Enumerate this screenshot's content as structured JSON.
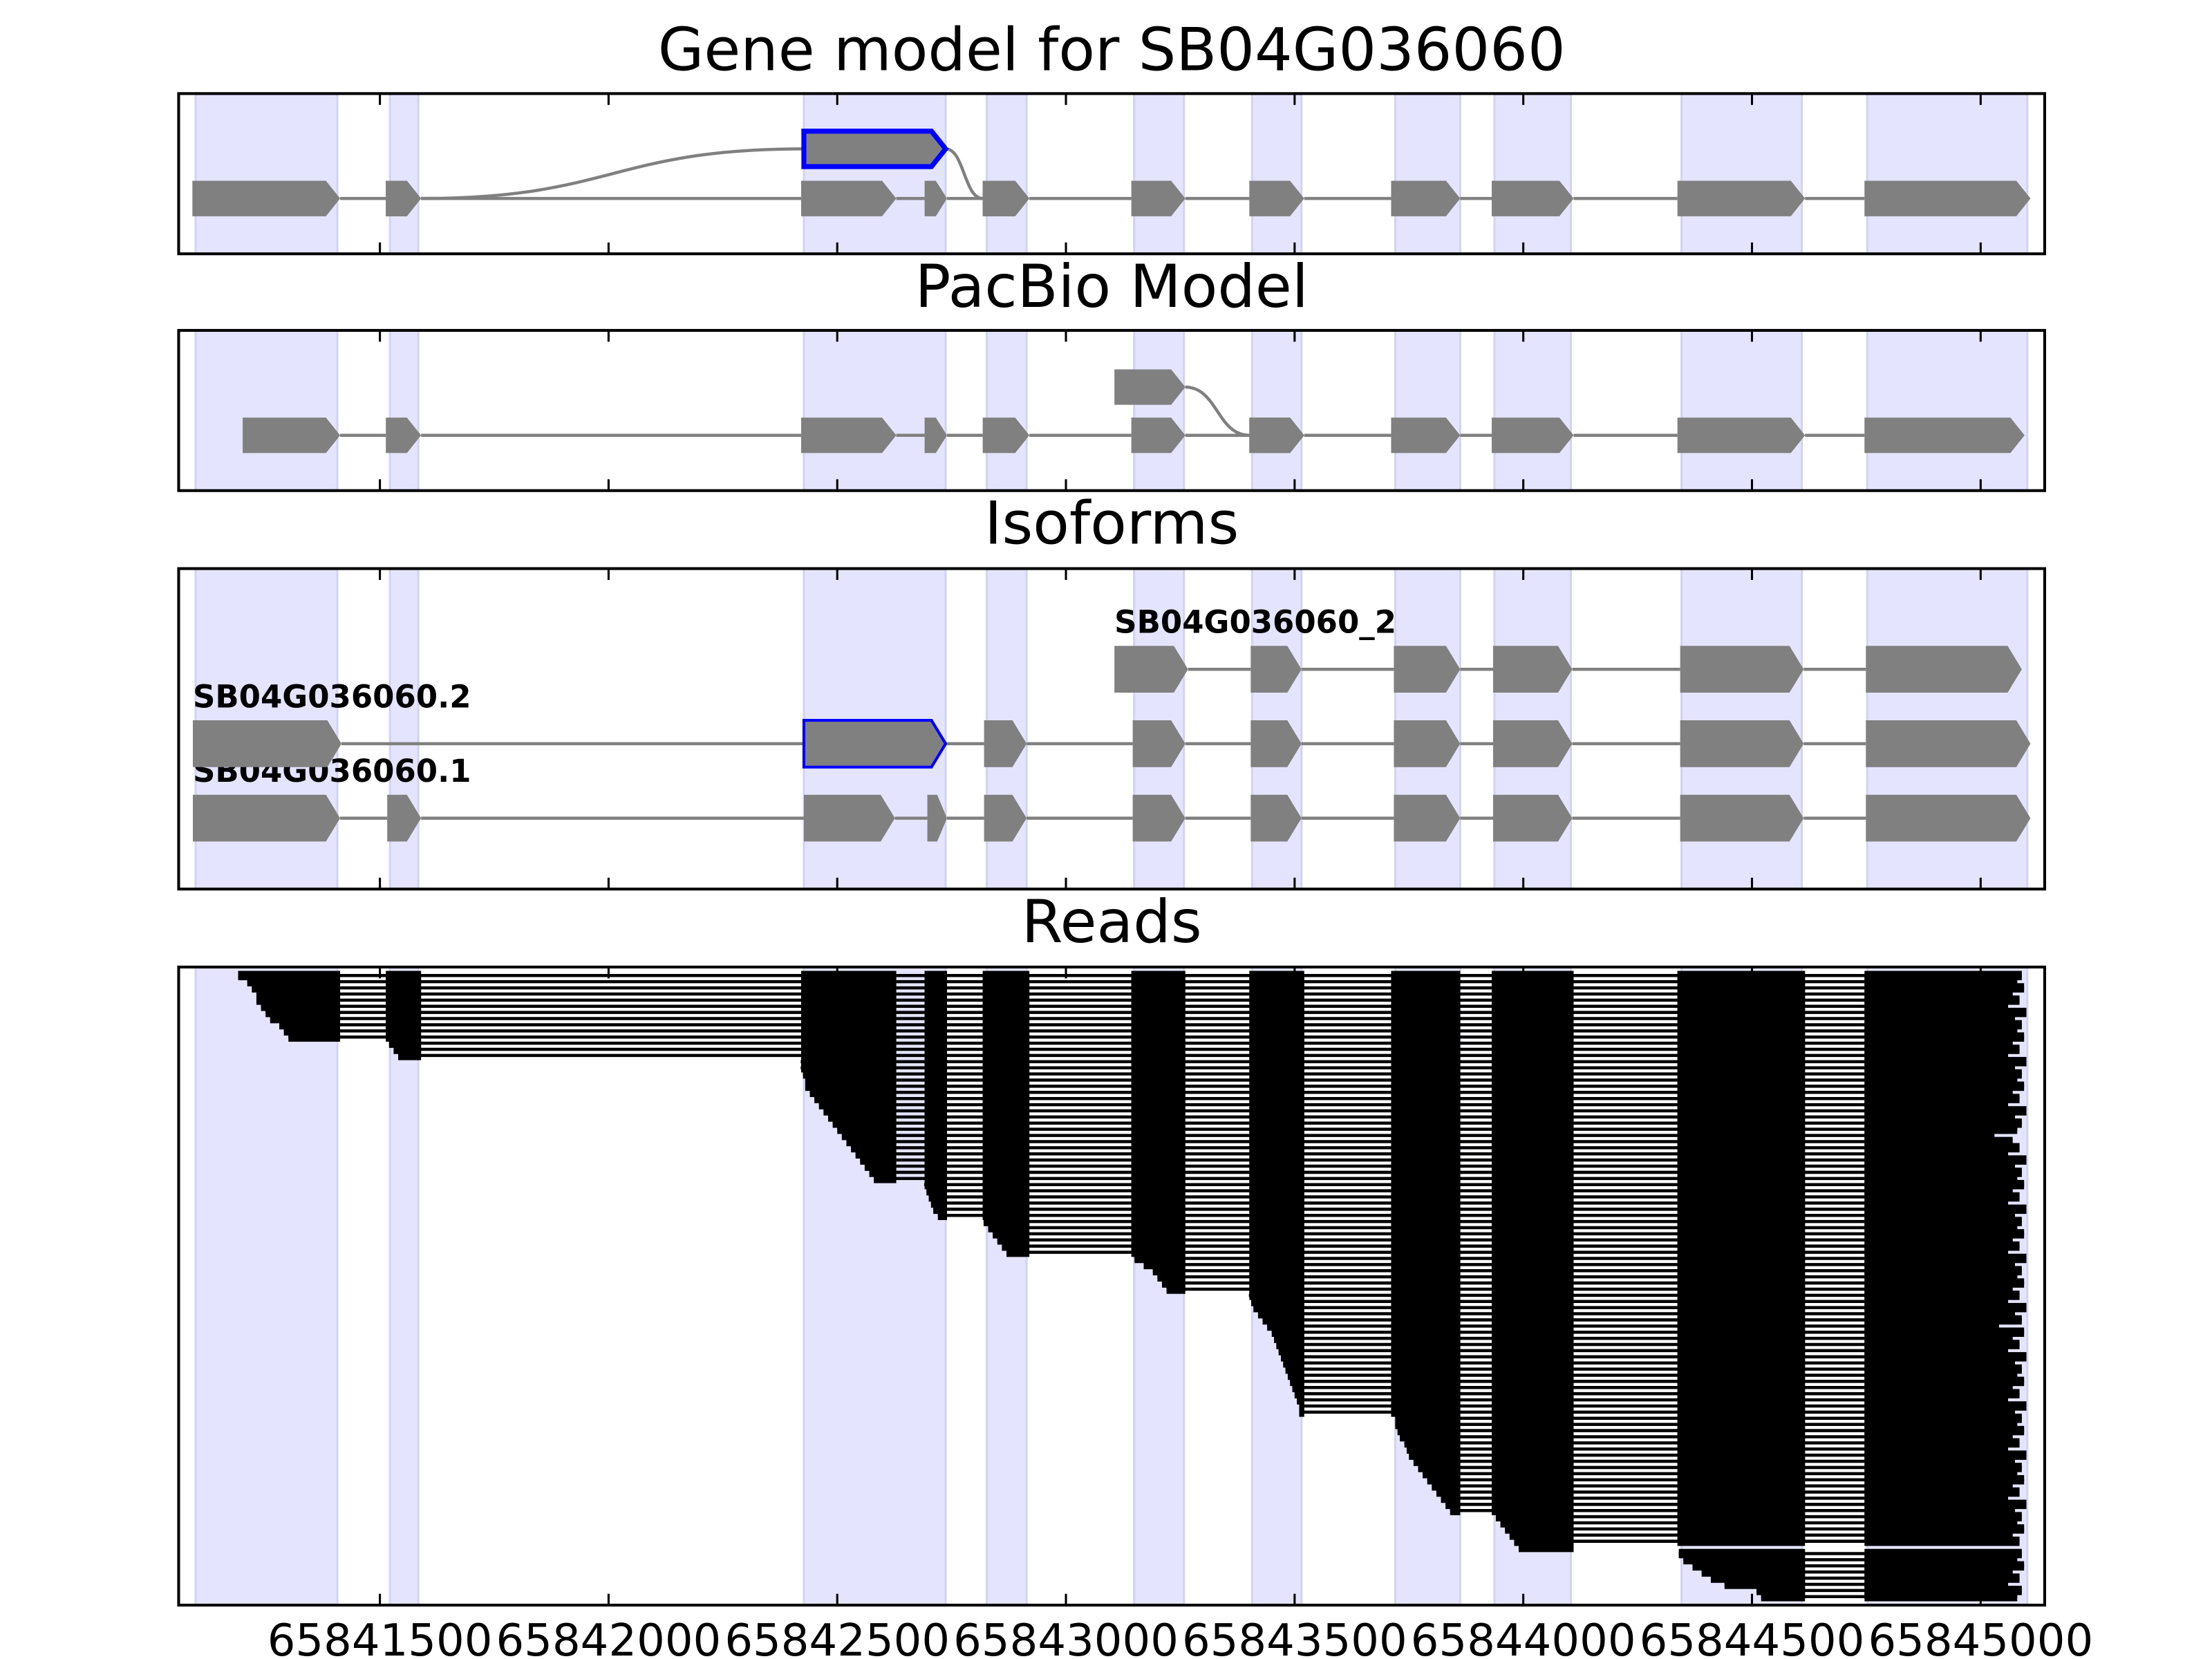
{
  "chart_data": {
    "type": "gene_tracks",
    "xlim": [
      65841060,
      65845140
    ],
    "xticks": [
      65841500,
      65842000,
      65842500,
      65843000,
      65843500,
      65844000,
      65844500,
      65845000
    ],
    "region_color": "#e4e4ff",
    "exon_color": "#808080",
    "intron_color": "#808080",
    "highlight_color": "#0000ff",
    "regions": [
      [
        65841097,
        65841407
      ],
      [
        65841522,
        65841584
      ],
      [
        65842427,
        65842737
      ],
      [
        65842827,
        65842914
      ],
      [
        65843149,
        65843258
      ],
      [
        65843407,
        65843515
      ],
      [
        65843720,
        65843862
      ],
      [
        65843937,
        65844104
      ],
      [
        65844346,
        65844609
      ],
      [
        65844752,
        65845102
      ]
    ],
    "panels": [
      {
        "title": "Gene model for SB04G036060",
        "transcripts": [
          {
            "exons": [
              [
                65841090,
                65841413
              ],
              [
                65841513,
                65841590
              ],
              [
                65842421,
                65842629
              ],
              [
                65842691,
                65842740
              ],
              [
                65842818,
                65842920
              ],
              [
                65843143,
                65843261
              ],
              [
                65843401,
                65843521
              ],
              [
                65843711,
                65843862
              ],
              [
                65843931,
                65844110
              ],
              [
                65844337,
                65844616
              ],
              [
                65844746,
                65845109
              ]
            ],
            "levels": [
              0,
              0,
              0,
              0,
              0,
              0,
              0,
              0,
              0,
              0,
              0
            ]
          },
          {
            "exons": [
              [
                65841513,
                65841590
              ],
              [
                65842427,
                65842737
              ],
              [
                65842818,
                65842920
              ]
            ],
            "levels": [
              0,
              1,
              0
            ],
            "highlight": 1
          }
        ]
      },
      {
        "title": "PacBio Model",
        "transcripts": [
          {
            "exons": [
              [
                65841200,
                65841413
              ],
              [
                65841513,
                65841590
              ],
              [
                65842421,
                65842629
              ],
              [
                65842691,
                65842740
              ],
              [
                65842818,
                65842920
              ],
              [
                65843143,
                65843261
              ],
              [
                65843401,
                65843521
              ],
              [
                65843711,
                65843862
              ],
              [
                65843931,
                65844110
              ],
              [
                65844337,
                65844616
              ],
              [
                65844746,
                65845096
              ]
            ],
            "levels": [
              0,
              0,
              0,
              0,
              0,
              0,
              0,
              0,
              0,
              0,
              0
            ]
          },
          {
            "exons": [
              [
                65843106,
                65843261
              ],
              [
                65843401,
                65843521
              ]
            ],
            "levels": [
              1,
              0
            ]
          }
        ]
      },
      {
        "title": "Isoforms",
        "transcripts": [
          {
            "name": "SB04G036060.1",
            "exons": [
              [
                65841091,
                65841413
              ],
              [
                65841516,
                65841590
              ],
              [
                65842427,
                65842626
              ],
              [
                65842697,
                65842740
              ],
              [
                65842821,
                65842914
              ],
              [
                65843146,
                65843261
              ],
              [
                65843404,
                65843515
              ],
              [
                65843717,
                65843862
              ],
              [
                65843934,
                65844107
              ],
              [
                65844343,
                65844613
              ],
              [
                65844749,
                65845109
              ]
            ],
            "levels": [
              0,
              0,
              0,
              0,
              0,
              0,
              0,
              0,
              0,
              0,
              0
            ]
          },
          {
            "name": "SB04G036060.2",
            "exons": [
              [
                65841091,
                65841416
              ],
              [
                65842427,
                65842737
              ],
              [
                65842821,
                65842914
              ],
              [
                65843146,
                65843261
              ],
              [
                65843404,
                65843515
              ],
              [
                65843717,
                65843862
              ],
              [
                65843934,
                65844107
              ],
              [
                65844343,
                65844613
              ],
              [
                65844749,
                65845109
              ]
            ],
            "levels": [
              1,
              1,
              1,
              1,
              1,
              1,
              1,
              1,
              1
            ],
            "highlight": 1
          },
          {
            "name": "SB04G036060_2",
            "exons": [
              [
                65843106,
                65843267
              ],
              [
                65843404,
                65843515
              ],
              [
                65843717,
                65843862
              ],
              [
                65843934,
                65844107
              ],
              [
                65844343,
                65844613
              ],
              [
                65844749,
                65845090
              ]
            ],
            "levels": [
              2,
              2,
              2,
              2,
              2,
              2
            ]
          }
        ]
      },
      {
        "title": "Reads",
        "color": "#000000",
        "reads": [
          [
            65841190,
            65845090
          ],
          [
            65841210,
            65845080
          ],
          [
            65841220,
            65845095
          ],
          [
            65841230,
            65845070
          ],
          [
            65841230,
            65845085
          ],
          [
            65841240,
            65845060
          ],
          [
            65841250,
            65845100
          ],
          [
            65841260,
            65845075
          ],
          [
            65841280,
            65845090
          ],
          [
            65841290,
            65845080
          ],
          [
            65841300,
            65845095
          ],
          [
            65841520,
            65845070
          ],
          [
            65841530,
            65845085
          ],
          [
            65841540,
            65845060
          ],
          [
            65842420,
            65845100
          ],
          [
            65842420,
            65845075
          ],
          [
            65842425,
            65845090
          ],
          [
            65842430,
            65845080
          ],
          [
            65842430,
            65845095
          ],
          [
            65842440,
            65845070
          ],
          [
            65842450,
            65845085
          ],
          [
            65842460,
            65845060
          ],
          [
            65842470,
            65845100
          ],
          [
            65842480,
            65845075
          ],
          [
            65842490,
            65845090
          ],
          [
            65842500,
            65845080
          ],
          [
            65842510,
            65845030
          ],
          [
            65842520,
            65845070
          ],
          [
            65842530,
            65845085
          ],
          [
            65842540,
            65845060
          ],
          [
            65842550,
            65845100
          ],
          [
            65842560,
            65845075
          ],
          [
            65842570,
            65845090
          ],
          [
            65842580,
            65845080
          ],
          [
            65842690,
            65845095
          ],
          [
            65842695,
            65845070
          ],
          [
            65842700,
            65845085
          ],
          [
            65842705,
            65845060
          ],
          [
            65842710,
            65845100
          ],
          [
            65842720,
            65845075
          ],
          [
            65842820,
            65845090
          ],
          [
            65842830,
            65845080
          ],
          [
            65842840,
            65845095
          ],
          [
            65842850,
            65845070
          ],
          [
            65842860,
            65845085
          ],
          [
            65842870,
            65845060
          ],
          [
            65843150,
            65845100
          ],
          [
            65843170,
            65845075
          ],
          [
            65843190,
            65845090
          ],
          [
            65843200,
            65845080
          ],
          [
            65843210,
            65845095
          ],
          [
            65843220,
            65845070
          ],
          [
            65843400,
            65845085
          ],
          [
            65843405,
            65845060
          ],
          [
            65843410,
            65845100
          ],
          [
            65843420,
            65845075
          ],
          [
            65843430,
            65845090
          ],
          [
            65843440,
            65845040
          ],
          [
            65843450,
            65845095
          ],
          [
            65843455,
            65845070
          ],
          [
            65843460,
            65845085
          ],
          [
            65843465,
            65845060
          ],
          [
            65843470,
            65845100
          ],
          [
            65843475,
            65845075
          ],
          [
            65843480,
            65845090
          ],
          [
            65843485,
            65845080
          ],
          [
            65843490,
            65845095
          ],
          [
            65843495,
            65845070
          ],
          [
            65843500,
            65845085
          ],
          [
            65843505,
            65845060
          ],
          [
            65843510,
            65845100
          ],
          [
            65843510,
            65845075
          ],
          [
            65843720,
            65845090
          ],
          [
            65843720,
            65845080
          ],
          [
            65843725,
            65845095
          ],
          [
            65843730,
            65845070
          ],
          [
            65843740,
            65845085
          ],
          [
            65843745,
            65845060
          ],
          [
            65843750,
            65845100
          ],
          [
            65843760,
            65845075
          ],
          [
            65843770,
            65845090
          ],
          [
            65843780,
            65845080
          ],
          [
            65843790,
            65845095
          ],
          [
            65843800,
            65845070
          ],
          [
            65843810,
            65845085
          ],
          [
            65843820,
            65845060
          ],
          [
            65843830,
            65845100
          ],
          [
            65843840,
            65845075
          ],
          [
            65843940,
            65845090
          ],
          [
            65843950,
            65845080
          ],
          [
            65843960,
            65845095
          ],
          [
            65843970,
            65845070
          ],
          [
            65843980,
            65845085
          ],
          [
            65843990,
            65844110
          ],
          [
            65844340,
            65845090
          ],
          [
            65844350,
            65845080
          ],
          [
            65844370,
            65845095
          ],
          [
            65844390,
            65845070
          ],
          [
            65844410,
            65845085
          ],
          [
            65844440,
            65845060
          ],
          [
            65844510,
            65845090
          ],
          [
            65844520,
            65845080
          ]
        ]
      }
    ]
  }
}
